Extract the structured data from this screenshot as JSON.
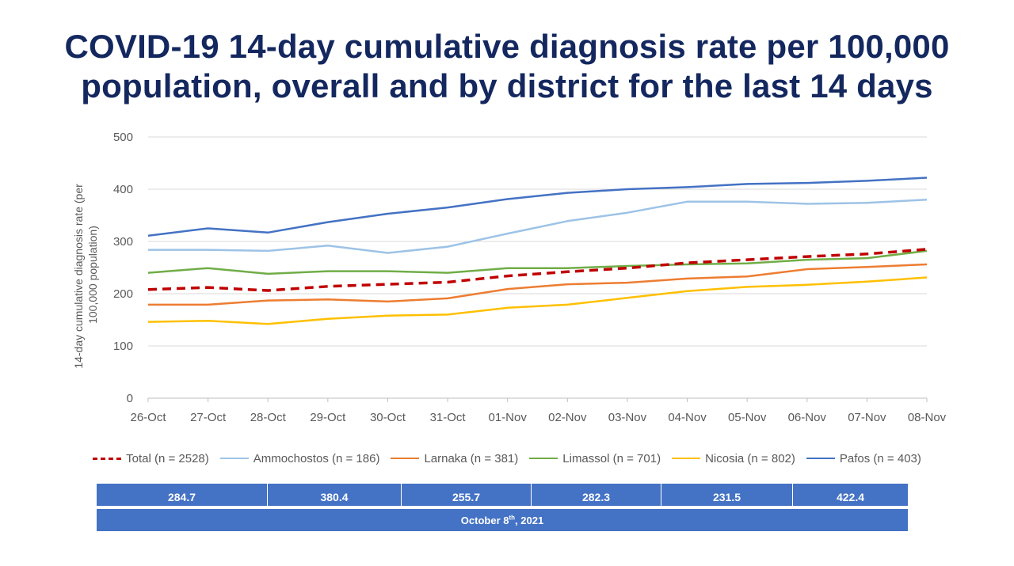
{
  "title_lines": [
    "COVID-19 14-day cumulative diagnosis rate per 100,000",
    "population, overall and by district for the last 14 days"
  ],
  "chart_data": {
    "type": "line",
    "ylabel_lines": [
      "14-day cumulative diagnosis rate (per",
      "100,000 population)"
    ],
    "xlabel": "",
    "ylim": [
      0,
      500
    ],
    "yticks": [
      0,
      100,
      200,
      300,
      400,
      500
    ],
    "grid": true,
    "legend_position": "bottom",
    "categories": [
      "26-Oct",
      "27-Oct",
      "28-Oct",
      "29-Oct",
      "30-Oct",
      "31-Oct",
      "01-Nov",
      "02-Nov",
      "03-Nov",
      "04-Nov",
      "05-Nov",
      "06-Nov",
      "07-Nov",
      "08-Nov"
    ],
    "series": [
      {
        "name": "Total (n = 2528)",
        "color": "#c00000",
        "dashed": true,
        "values": [
          208,
          212,
          206,
          214,
          218,
          222,
          234,
          242,
          249,
          259,
          265,
          271,
          276,
          285
        ]
      },
      {
        "name": "Ammochostos (n = 186)",
        "color": "#9dc3e6",
        "dashed": false,
        "values": [
          284,
          284,
          282,
          292,
          278,
          290,
          315,
          339,
          355,
          376,
          376,
          372,
          374,
          380
        ]
      },
      {
        "name": "Larnaka (n = 381)",
        "color": "#ed7d31",
        "dashed": false,
        "values": [
          179,
          179,
          187,
          189,
          185,
          191,
          209,
          218,
          221,
          229,
          233,
          247,
          251,
          256
        ]
      },
      {
        "name": "Limassol (n = 701)",
        "color": "#70ad47",
        "dashed": false,
        "values": [
          240,
          249,
          238,
          243,
          243,
          240,
          249,
          249,
          253,
          256,
          258,
          265,
          268,
          282
        ]
      },
      {
        "name": "Nicosia (n = 802)",
        "color": "#ffc000",
        "dashed": false,
        "values": [
          146,
          148,
          142,
          152,
          158,
          160,
          173,
          179,
          192,
          205,
          213,
          217,
          223,
          231
        ]
      },
      {
        "name": "Pafos (n = 403)",
        "color": "#4472c4",
        "dashed": false,
        "values": [
          311,
          325,
          317,
          337,
          353,
          365,
          381,
          393,
          400,
          404,
          410,
          412,
          416,
          422
        ]
      }
    ]
  },
  "summary": {
    "values": [
      "284.7",
      "380.4",
      "255.7",
      "282.3",
      "231.5",
      "422.4"
    ],
    "date_prefix": "October 8",
    "date_sup": "th",
    "date_suffix": ", 2021"
  }
}
